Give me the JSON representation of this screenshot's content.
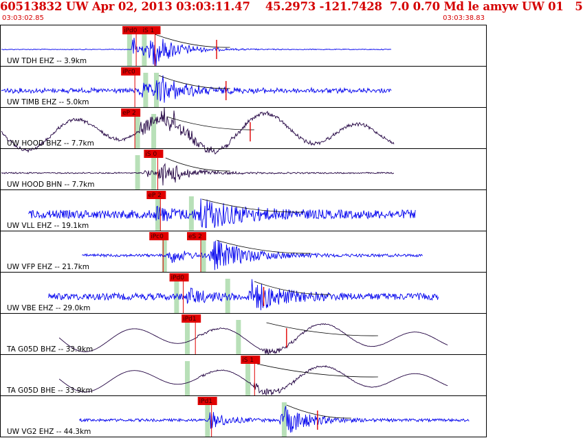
{
  "header": {
    "title": "60513832 UW Apr 02, 2013 03:03:11.47    45.2973 -121.7428  7.0 0.70 Md le amyw UW 01   5",
    "start_time": "03:03:02.85",
    "end_time": "03:03:38.83"
  },
  "colors": {
    "header_text": "#d40000",
    "trace_vertical": "#0000ee",
    "trace_horizontal": "#200040",
    "pick_flag": "#e00000",
    "pick_window": "#b8e0b8",
    "panel_border": "#000000",
    "coda_line": "#000000"
  },
  "chart_data": {
    "type": "line",
    "title": "",
    "xlabel": "",
    "ylabel": "",
    "x_range_seconds": [
      0,
      35.98
    ],
    "panels": [
      {
        "label": "UW TDH EHZ -- 3.9km",
        "component": "Z",
        "trace_start": 0.0,
        "trace_end": 29.0,
        "noise": 0.03,
        "p_time": 9.7,
        "s_time": 11.2,
        "amp_p": 0.9,
        "amp_s": 1.0,
        "coda_end": 17.0,
        "red_mark": 16.0,
        "picks": [
          {
            "label": "iPd0",
            "time": 9.0
          },
          {
            "label": "iS 1",
            "time": 10.4
          }
        ],
        "windows": [
          9.5,
          10.6
        ]
      },
      {
        "label": "UW TIMB EHZ -- 5.0km",
        "component": "Z",
        "trace_start": 0.0,
        "trace_end": 29.0,
        "noise": 0.18,
        "p_time": 10.2,
        "s_time": 11.5,
        "amp_p": 0.5,
        "amp_s": 1.0,
        "coda_end": 17.0,
        "red_mark": 16.7,
        "picks": [
          {
            "label": "iPc0",
            "time": 8.9
          }
        ],
        "windows": [
          10.7,
          11.5
        ]
      },
      {
        "label": "UW HOOD BHZ -- 7.7km",
        "component": "H",
        "trace_start": 0.0,
        "trace_end": 29.2,
        "noise": 0.12,
        "p_time": 10.3,
        "s_time": 12.1,
        "amp_p": 0.7,
        "amp_s": 0.8,
        "coda_end": 18.8,
        "red_mark": 18.5,
        "slow": 1,
        "picks": [
          {
            "label": "eP 2",
            "time": 8.9
          }
        ],
        "windows": [
          10.1,
          11.3
        ]
      },
      {
        "label": "UW HOOD BHN -- 7.7km",
        "component": "H",
        "trace_start": 0.0,
        "trace_end": 29.2,
        "noise": 0.05,
        "p_time": 10.6,
        "s_time": 12.0,
        "amp_p": 0.3,
        "amp_s": 1.0,
        "coda_end": 17.0,
        "red_mark": -1,
        "picks": [
          {
            "label": "iS 0",
            "time": 10.6
          }
        ],
        "windows": [
          10.1,
          11.3
        ]
      },
      {
        "label": "UW VLL EHZ -- 19.1km",
        "component": "Z",
        "trace_start": 2.0,
        "trace_end": 30.8,
        "noise": 0.28,
        "p_time": 11.5,
        "s_time": 14.7,
        "amp_p": 0.4,
        "amp_s": 1.0,
        "coda_end": 22.5,
        "red_mark": -1,
        "picks": [
          {
            "label": "eP 2",
            "time": 10.8
          }
        ],
        "windows": [
          11.6,
          14.1
        ]
      },
      {
        "label": "UW VFP EHZ -- 21.7km",
        "component": "Z",
        "trace_start": 6.0,
        "trace_end": 31.3,
        "noise": 0.09,
        "p_time": 12.3,
        "s_time": 15.8,
        "amp_p": 0.6,
        "amp_s": 1.0,
        "coda_end": 23.0,
        "red_mark": -1,
        "picks": [
          {
            "label": "iPc0",
            "time": 11.0
          },
          {
            "label": "eS 2",
            "time": 13.8
          }
        ],
        "windows": [
          12.1,
          15.0
        ]
      },
      {
        "label": "UW VBE EHZ -- 29.0km",
        "component": "Z",
        "trace_start": 3.5,
        "trace_end": 32.5,
        "noise": 0.22,
        "p_time": 13.8,
        "s_time": 18.6,
        "amp_p": 0.5,
        "amp_s": 1.0,
        "coda_end": 24.5,
        "red_mark": 19.5,
        "picks": [
          {
            "label": "iPd0",
            "time": 12.5
          }
        ],
        "windows": [
          13.0,
          16.8
        ]
      },
      {
        "label": "TA G05D BHZ -- 33.9km",
        "component": "H",
        "trace_start": 4.3,
        "trace_end": 33.2,
        "noise": 0.0,
        "p_time": 14.6,
        "s_time": 19.5,
        "amp_p": 0.15,
        "amp_s": 0.22,
        "coda_end": 28.0,
        "red_mark": 21.2,
        "slow": 0.75,
        "picks": [
          {
            "label": "iPd1",
            "time": 13.4
          }
        ],
        "windows": [
          13.8,
          17.6
        ]
      },
      {
        "label": "TA G05D BHE -- 33.9km",
        "component": "H",
        "trace_start": 4.3,
        "trace_end": 33.2,
        "noise": 0.0,
        "p_time": 14.6,
        "s_time": 18.8,
        "amp_p": 0.12,
        "amp_s": 0.3,
        "coda_end": 28.0,
        "red_mark": -1,
        "slow": 0.7,
        "picks": [
          {
            "label": "iS 1",
            "time": 17.8
          }
        ],
        "windows": [
          13.8,
          18.3
        ]
      },
      {
        "label": "UW VG2 EHZ -- 44.3km",
        "component": "Z",
        "trace_start": 5.8,
        "trace_end": 34.8,
        "noise": 0.09,
        "p_time": 15.5,
        "s_time": 21.0,
        "amp_p": 0.6,
        "amp_s": 1.0,
        "coda_end": 26.0,
        "red_mark": 23.5,
        "picks": [
          {
            "label": "iPd1",
            "time": 14.6
          }
        ],
        "windows": [
          15.3,
          21.0
        ]
      }
    ]
  }
}
